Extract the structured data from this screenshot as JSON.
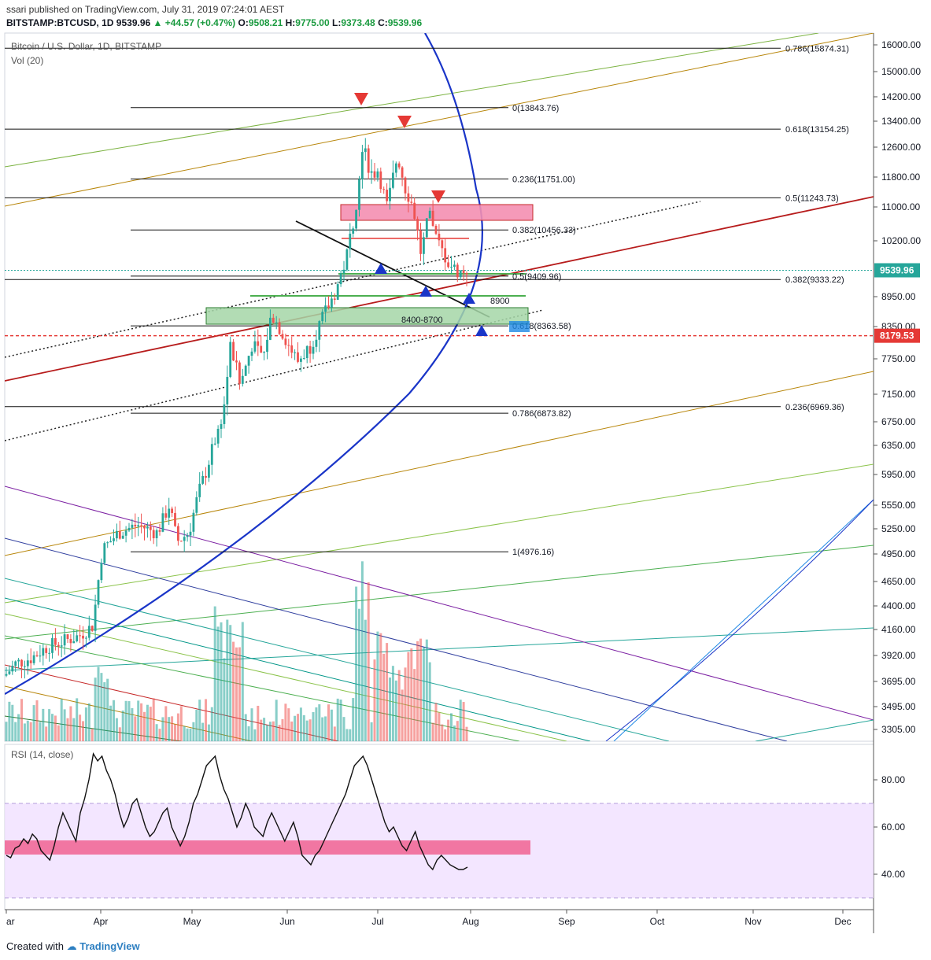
{
  "header": {
    "published": "ssari published on TradingView.com, July 31, 2019 07:24:01 AEST",
    "symbol": "BITSTAMP:BTCUSD, 1D",
    "last": "9539.96",
    "change": "+44.57 (+0.47%)",
    "o_label": "O:",
    "o_value": "9508.21",
    "h_label": "H:",
    "h_value": "9775.00",
    "l_label": "L:",
    "l_value": "9373.48",
    "c_label": "C:",
    "c_value": "9539.96"
  },
  "legends": {
    "main": "Bitcoin / U.S. Dollar, 1D, BITSTAMP",
    "vol": "Vol (20)",
    "rsi": "RSI (14, close)"
  },
  "footer": {
    "created_with": "Created with",
    "brand": "TradingView"
  },
  "colors": {
    "up": "#26a69a",
    "down": "#ef5350",
    "accent_blue": "#2962ff",
    "rsi_band": "#f0e0ff",
    "support_zone": "#a5d6a7",
    "resistance_zone": "#f48fb1"
  },
  "chart_data": {
    "type": "candlestick",
    "price_axis_ticks": [
      "16000.00",
      "15000.00",
      "14200.00",
      "13400.00",
      "12600.00",
      "11800.00",
      "11000.00",
      "10200.00",
      "8950.00",
      "8350.00",
      "7750.00",
      "7150.00",
      "6750.00",
      "6350.00",
      "5950.00",
      "5550.00",
      "5250.00",
      "4950.00",
      "4650.00",
      "4400.00",
      "4160.00",
      "3920.00",
      "3695.00",
      "3495.00",
      "3305.00"
    ],
    "price_ylim": [
      3200,
      16300
    ],
    "x_axis_labels": [
      "ar",
      "Apr",
      "May",
      "Jun",
      "Jul",
      "Aug",
      "Sep",
      "Oct",
      "Nov",
      "Dec"
    ],
    "current_price_tag": "9539.96",
    "red_level_tag": "8179.53",
    "fib_left": [
      {
        "label": "0(13843.76)",
        "price": 13843.76
      },
      {
        "label": "0.236(11751.00)",
        "price": 11751.0
      },
      {
        "label": "0.382(10456.33)",
        "price": 10456.33
      },
      {
        "label": "0.5(9409.96)",
        "price": 9409.96
      },
      {
        "label": "0.618(8363.58)",
        "price": 8363.58
      },
      {
        "label": "0.786(6873.82)",
        "price": 6873.82
      },
      {
        "label": "1(4976.16)",
        "price": 4976.16
      }
    ],
    "fib_right": [
      {
        "label": "0.786(15874.31)",
        "price": 15874.31
      },
      {
        "label": "0.618(13154.25)",
        "price": 13154.25
      },
      {
        "label": "0.5(11243.73)",
        "price": 11243.73
      },
      {
        "label": "0.382(9333.22)",
        "price": 9333.22
      },
      {
        "label": "0.236(6969.36)",
        "price": 6969.36
      }
    ],
    "annotations": [
      "8900",
      "8400-8700"
    ],
    "rsi": {
      "ticks": [
        "80.00",
        "60.00",
        "40.00"
      ],
      "ylim": [
        25,
        95
      ],
      "band": [
        30,
        70
      ],
      "values": [
        48,
        47,
        51,
        52,
        55,
        53,
        57,
        55,
        50,
        48,
        46,
        52,
        60,
        66,
        62,
        58,
        54,
        66,
        72,
        80,
        91,
        88,
        90,
        84,
        80,
        74,
        66,
        60,
        64,
        70,
        72,
        66,
        60,
        56,
        58,
        62,
        66,
        68,
        60,
        56,
        52,
        56,
        62,
        70,
        74,
        80,
        86,
        88,
        90,
        82,
        76,
        72,
        66,
        60,
        64,
        70,
        66,
        60,
        58,
        56,
        62,
        66,
        62,
        58,
        54,
        58,
        62,
        56,
        48,
        46,
        44,
        48,
        50,
        54,
        58,
        62,
        66,
        70,
        74,
        80,
        86,
        88,
        90,
        86,
        80,
        74,
        68,
        62,
        58,
        60,
        56,
        52,
        50,
        54,
        58,
        52,
        48,
        44,
        42,
        46,
        48,
        46,
        44,
        43,
        42,
        42,
        43
      ]
    }
  }
}
